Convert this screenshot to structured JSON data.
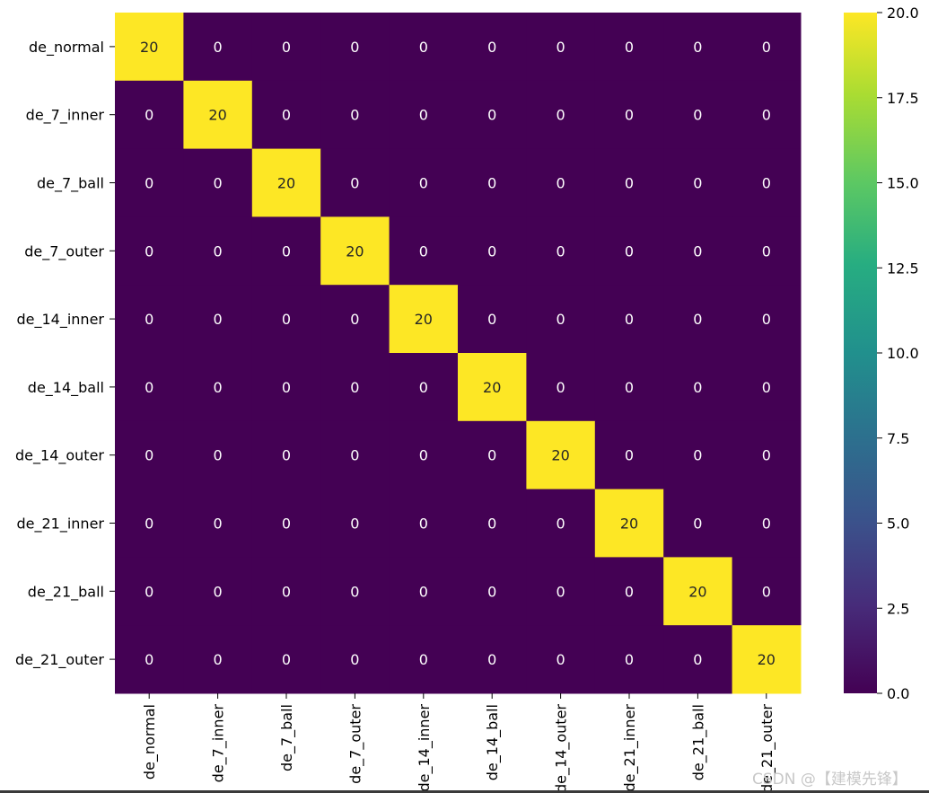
{
  "chart_data": {
    "type": "heatmap",
    "title": "",
    "xlabel": "",
    "ylabel": "",
    "rows": [
      "de_normal",
      "de_7_inner",
      "de_7_ball",
      "de_7_outer",
      "de_14_inner",
      "de_14_ball",
      "de_14_outer",
      "de_21_inner",
      "de_21_ball",
      "de_21_outer"
    ],
    "columns": [
      "de_normal",
      "de_7_inner",
      "de_7_ball",
      "de_7_outer",
      "de_14_inner",
      "de_14_ball",
      "de_14_outer",
      "de_21_inner",
      "de_21_ball",
      "de_21_outer"
    ],
    "values": [
      [
        20,
        0,
        0,
        0,
        0,
        0,
        0,
        0,
        0,
        0
      ],
      [
        0,
        20,
        0,
        0,
        0,
        0,
        0,
        0,
        0,
        0
      ],
      [
        0,
        0,
        20,
        0,
        0,
        0,
        0,
        0,
        0,
        0
      ],
      [
        0,
        0,
        0,
        20,
        0,
        0,
        0,
        0,
        0,
        0
      ],
      [
        0,
        0,
        0,
        0,
        20,
        0,
        0,
        0,
        0,
        0
      ],
      [
        0,
        0,
        0,
        0,
        0,
        20,
        0,
        0,
        0,
        0
      ],
      [
        0,
        0,
        0,
        0,
        0,
        0,
        20,
        0,
        0,
        0
      ],
      [
        0,
        0,
        0,
        0,
        0,
        0,
        0,
        20,
        0,
        0
      ],
      [
        0,
        0,
        0,
        0,
        0,
        0,
        0,
        0,
        20,
        0
      ],
      [
        0,
        0,
        0,
        0,
        0,
        0,
        0,
        0,
        0,
        20
      ]
    ],
    "colormap": "viridis",
    "colorbar": {
      "range": [
        0,
        20
      ],
      "ticks": [
        0.0,
        2.5,
        5.0,
        7.5,
        10.0,
        12.5,
        15.0,
        17.5,
        20.0
      ],
      "tick_labels": [
        "0.0",
        "2.5",
        "5.0",
        "7.5",
        "10.0",
        "12.5",
        "15.0",
        "17.5",
        "20.0"
      ]
    },
    "annotation_colors": {
      "on_low": "#ffffff",
      "on_high": "#262626"
    }
  },
  "watermark": "CSDN @【建模先锋】"
}
